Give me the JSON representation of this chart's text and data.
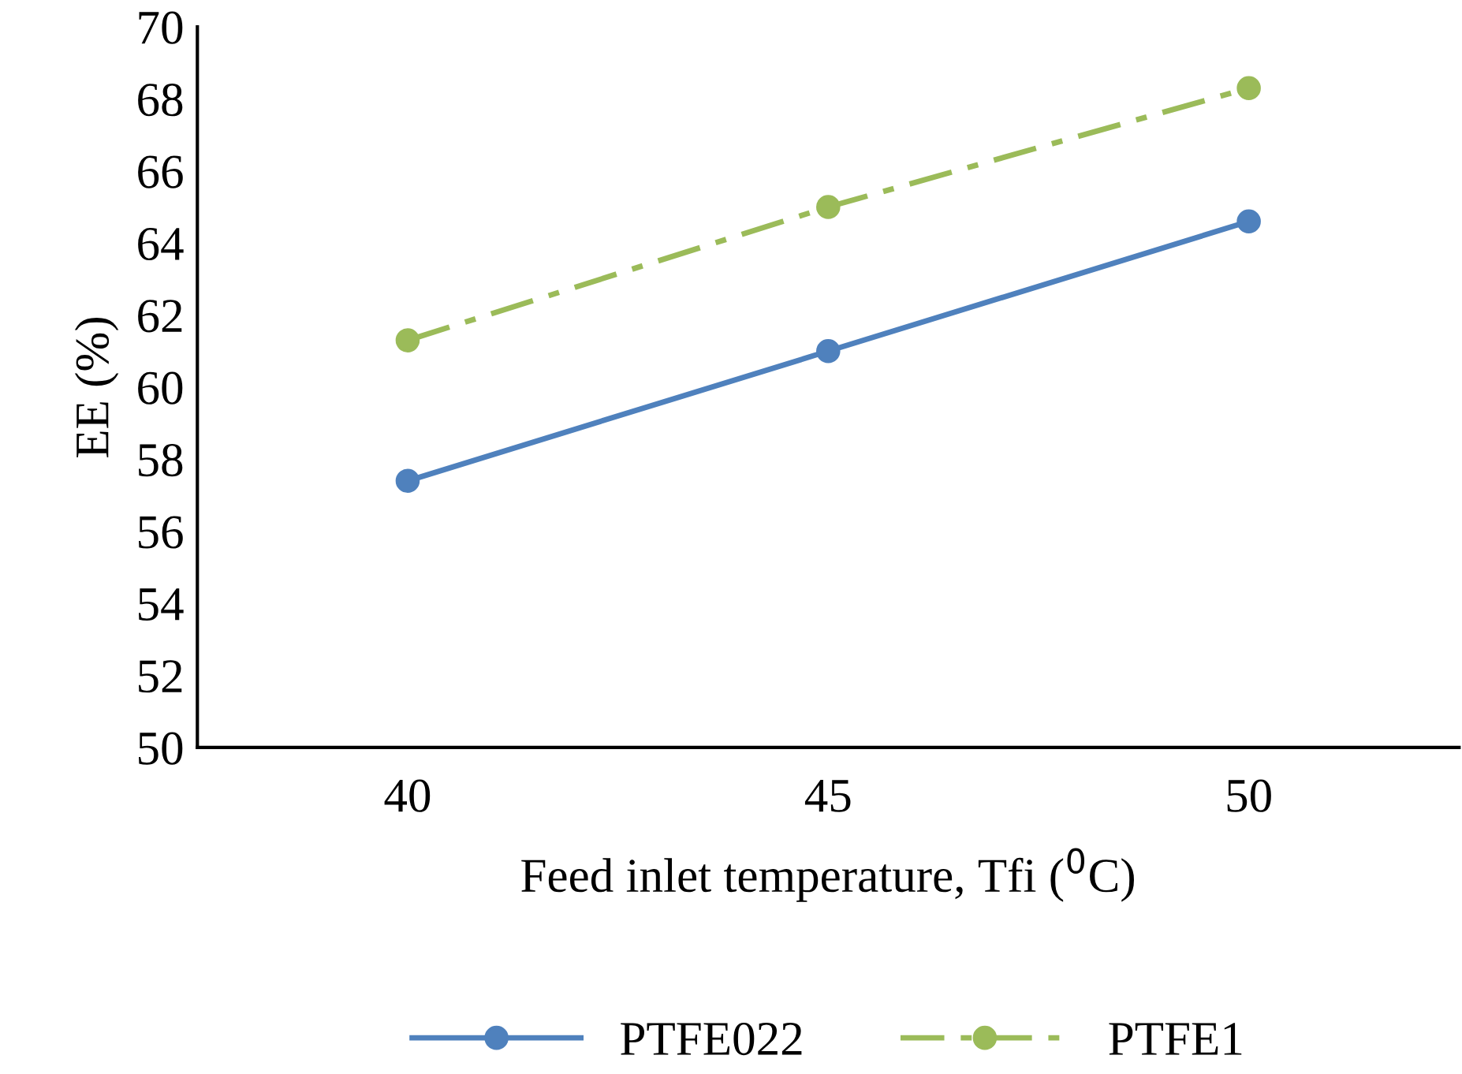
{
  "chart_data": {
    "type": "line",
    "xlabel": "Feed inlet temperature, Tfi ($^{0}$C)",
    "ylabel": "EE (%)",
    "categories": [
      "40",
      "45",
      "50"
    ],
    "series": [
      {
        "name": "PTFE022",
        "color": "#4f81bd",
        "values": [
          57.4,
          61.0,
          64.6
        ],
        "line_style": "solid"
      },
      {
        "name": "PTFE1",
        "color": "#9bbb59",
        "values": [
          61.3,
          65.0,
          68.3
        ],
        "line_style": "dashdot"
      }
    ],
    "ylim": [
      50,
      70
    ],
    "yticks": [
      50,
      52,
      54,
      56,
      58,
      60,
      62,
      64,
      66,
      68,
      70
    ],
    "marker": "circle",
    "grid": false,
    "legend": "bottom"
  }
}
